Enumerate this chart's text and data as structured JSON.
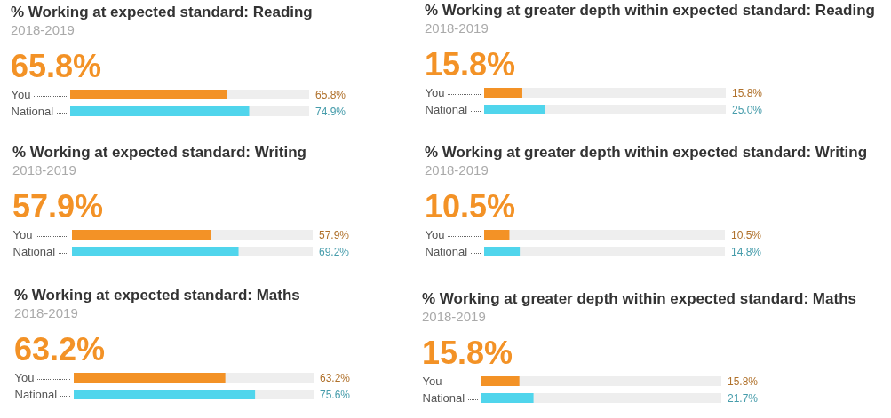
{
  "chart_data": [
    {
      "type": "bar",
      "orientation": "horizontal",
      "title": "% Working at expected standard: Reading",
      "subtitle": "2018-2019",
      "annotations": [
        "65.8%"
      ],
      "categories": [
        "You",
        "National"
      ],
      "values": [
        65.8,
        74.9
      ],
      "colors": [
        "#f39226",
        "#50d5ec"
      ],
      "value_labels": [
        "65.8%",
        "74.9%"
      ],
      "xlim": [
        0,
        100
      ],
      "tick_labels": "y"
    },
    {
      "type": "bar",
      "orientation": "horizontal",
      "title": "% Working at greater depth within expected standard: Reading",
      "subtitle": "2018-2019",
      "annotations": [
        "15.8%"
      ],
      "categories": [
        "You",
        "National"
      ],
      "values": [
        15.8,
        25.0
      ],
      "colors": [
        "#f39226",
        "#50d5ec"
      ],
      "value_labels": [
        "15.8%",
        "25.0%"
      ],
      "xlim": [
        0,
        100
      ],
      "tick_labels": "y"
    },
    {
      "type": "bar",
      "orientation": "horizontal",
      "title": "% Working at expected standard: Writing",
      "subtitle": "2018-2019",
      "annotations": [
        "57.9%"
      ],
      "categories": [
        "You",
        "National"
      ],
      "values": [
        57.9,
        69.2
      ],
      "colors": [
        "#f39226",
        "#50d5ec"
      ],
      "value_labels": [
        "57.9%",
        "69.2%"
      ],
      "xlim": [
        0,
        100
      ],
      "tick_labels": "y"
    },
    {
      "type": "bar",
      "orientation": "horizontal",
      "title": "% Working at greater depth within expected standard: Writing",
      "subtitle": "2018-2019",
      "annotations": [
        "10.5%"
      ],
      "categories": [
        "You",
        "National"
      ],
      "values": [
        10.5,
        14.8
      ],
      "colors": [
        "#f39226",
        "#50d5ec"
      ],
      "value_labels": [
        "10.5%",
        "14.8%"
      ],
      "xlim": [
        0,
        100
      ],
      "tick_labels": "y"
    },
    {
      "type": "bar",
      "orientation": "horizontal",
      "title": "% Working at expected standard: Maths",
      "subtitle": "2018-2019",
      "annotations": [
        "63.2%"
      ],
      "categories": [
        "You",
        "National"
      ],
      "values": [
        63.2,
        75.6
      ],
      "colors": [
        "#f39226",
        "#50d5ec"
      ],
      "value_labels": [
        "63.2%",
        "75.6%"
      ],
      "xlim": [
        0,
        100
      ],
      "tick_labels": "y"
    },
    {
      "type": "bar",
      "orientation": "horizontal",
      "title": "% Working at greater depth within expected standard: Maths",
      "subtitle": "2018-2019",
      "annotations": [
        "15.8%"
      ],
      "categories": [
        "You",
        "National"
      ],
      "values": [
        15.8,
        21.7
      ],
      "colors": [
        "#f39226",
        "#50d5ec"
      ],
      "value_labels": [
        "15.8%",
        "21.7%"
      ],
      "xlim": [
        0,
        100
      ],
      "tick_labels": "y"
    }
  ]
}
